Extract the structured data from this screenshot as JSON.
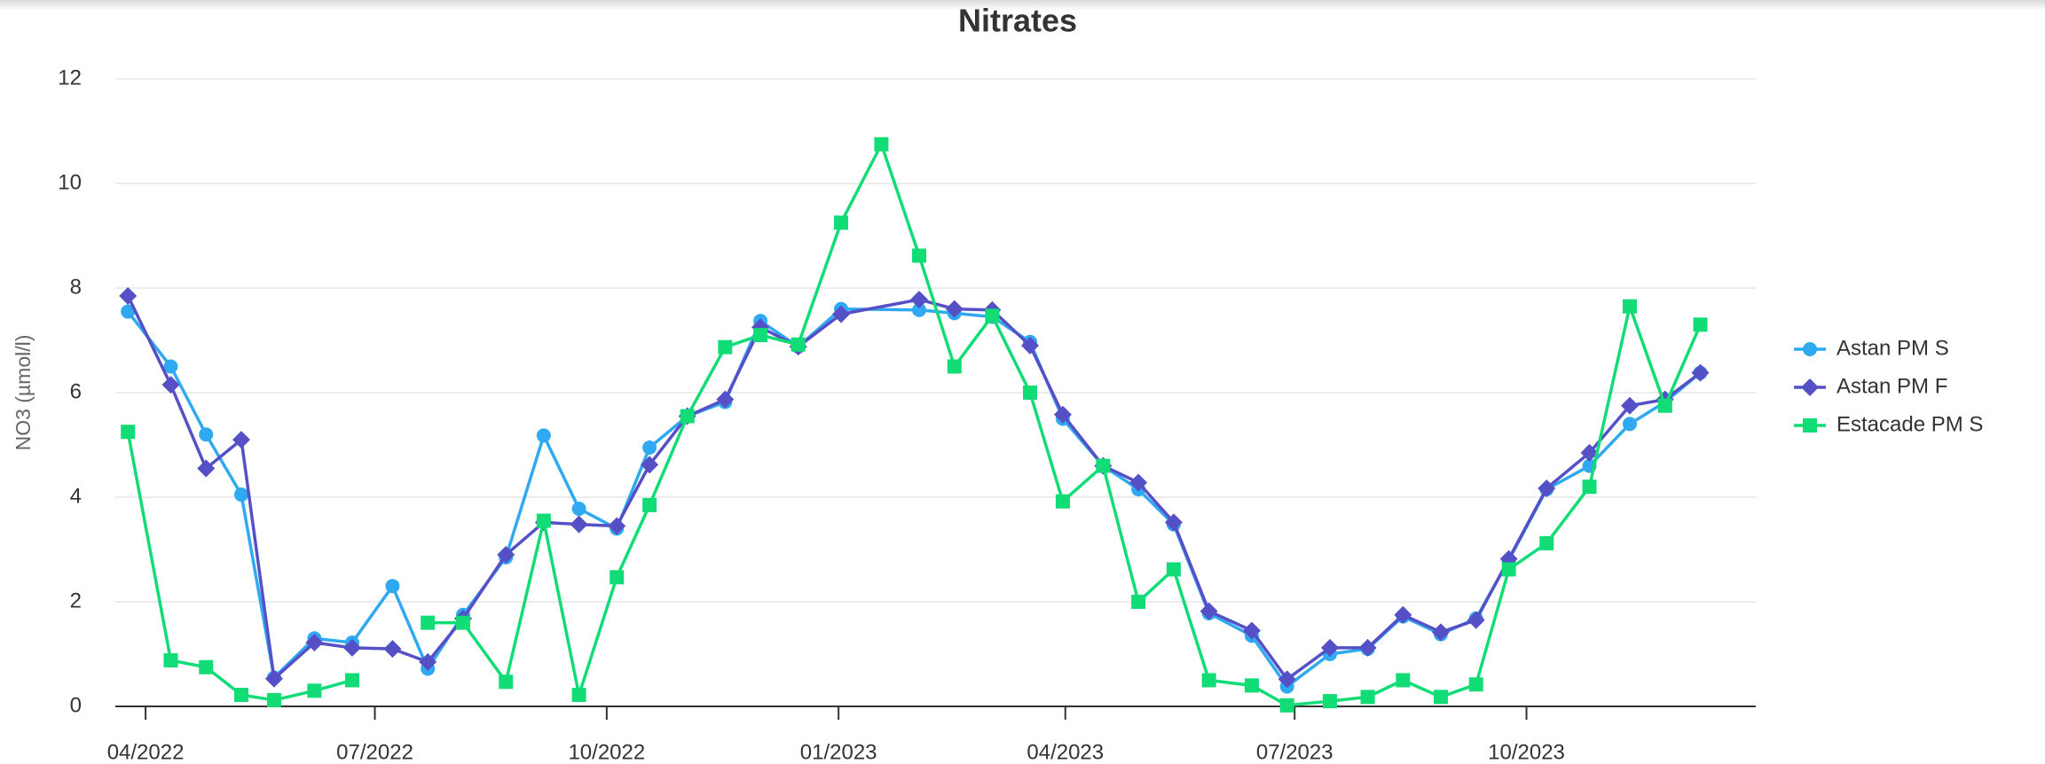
{
  "chart_data": {
    "type": "line",
    "title": "Nitrates",
    "ylabel": "NO3 (µmol/l)",
    "ylim": [
      0,
      12
    ],
    "yticks": [
      0,
      2,
      4,
      6,
      8,
      10,
      12
    ],
    "grid": true,
    "legend": "right",
    "xlim": [
      "2022-03-20",
      "2023-12-31"
    ],
    "xticks": [
      {
        "value": "2022-04-01",
        "label": "04/2022"
      },
      {
        "value": "2022-07-01",
        "label": "07/2022"
      },
      {
        "value": "2022-10-01",
        "label": "10/2022"
      },
      {
        "value": "2023-01-01",
        "label": "01/2023"
      },
      {
        "value": "2023-04-01",
        "label": "04/2023"
      },
      {
        "value": "2023-07-01",
        "label": "07/2023"
      },
      {
        "value": "2023-10-01",
        "label": "10/2023"
      }
    ],
    "series": [
      {
        "name": "Astan PM S",
        "color": "#2fa9f2",
        "marker": "circle",
        "x": [
          "2022-03-25",
          "2022-04-11",
          "2022-04-25",
          "2022-05-09",
          "2022-05-22",
          "2022-06-07",
          "2022-06-22",
          "2022-07-08",
          "2022-07-22",
          "2022-08-05",
          "2022-08-22",
          "2022-09-06",
          "2022-09-20",
          "2022-10-05",
          "2022-10-18",
          "2022-11-02",
          "2022-11-17",
          "2022-12-01",
          "2022-12-16",
          "2023-01-02",
          "2023-02-02",
          "2023-02-16",
          "2023-03-03",
          "2023-03-18",
          "2023-03-31",
          "2023-04-16",
          "2023-04-30",
          "2023-05-14",
          "2023-05-28",
          "2023-06-14",
          "2023-06-28",
          "2023-07-15",
          "2023-07-30",
          "2023-08-13",
          "2023-08-28",
          "2023-09-11",
          "2023-09-24",
          "2023-10-09",
          "2023-10-26",
          "2023-11-11",
          "2023-11-25",
          "2023-12-09"
        ],
        "values": [
          7.55,
          6.5,
          5.2,
          4.05,
          0.55,
          1.3,
          1.22,
          2.3,
          0.72,
          1.75,
          2.85,
          5.18,
          3.78,
          3.4,
          4.95,
          5.55,
          5.82,
          7.37,
          6.88,
          7.6,
          7.58,
          7.52,
          7.45,
          6.97,
          5.5,
          4.6,
          4.15,
          3.48,
          1.78,
          1.35,
          0.38,
          1.0,
          1.1,
          1.72,
          1.38,
          1.68,
          2.8,
          4.15,
          4.6,
          5.4,
          5.82,
          6.38
        ]
      },
      {
        "name": "Astan PM F",
        "color": "#5550c6",
        "marker": "diamond",
        "x": [
          "2022-03-25",
          "2022-04-11",
          "2022-04-25",
          "2022-05-09",
          "2022-05-22",
          "2022-06-07",
          "2022-06-22",
          "2022-07-08",
          "2022-07-22",
          "2022-08-05",
          "2022-08-22",
          "2022-09-06",
          "2022-09-20",
          "2022-10-05",
          "2022-10-18",
          "2022-11-02",
          "2022-11-17",
          "2022-12-01",
          "2022-12-16",
          "2023-01-02",
          "2023-02-02",
          "2023-02-16",
          "2023-03-03",
          "2023-03-18",
          "2023-03-31",
          "2023-04-16",
          "2023-04-30",
          "2023-05-14",
          "2023-05-28",
          "2023-06-14",
          "2023-06-28",
          "2023-07-15",
          "2023-07-30",
          "2023-08-13",
          "2023-08-28",
          "2023-09-11",
          "2023-09-24",
          "2023-10-09",
          "2023-10-26",
          "2023-11-11",
          "2023-11-25",
          "2023-12-09"
        ],
        "values": [
          7.85,
          6.15,
          4.55,
          5.1,
          0.53,
          1.22,
          1.12,
          1.1,
          0.85,
          1.68,
          2.9,
          3.52,
          3.48,
          3.45,
          4.62,
          5.55,
          5.87,
          7.25,
          6.88,
          7.5,
          7.78,
          7.6,
          7.58,
          6.9,
          5.58,
          4.6,
          4.28,
          3.52,
          1.82,
          1.45,
          0.52,
          1.12,
          1.12,
          1.75,
          1.42,
          1.65,
          2.82,
          4.17,
          4.85,
          5.75,
          5.87,
          6.38
        ]
      },
      {
        "name": "Estacade PM S",
        "color": "#12dc76",
        "marker": "square",
        "x": [
          "2022-03-25",
          "2022-04-11",
          "2022-04-25",
          "2022-05-09",
          "2022-05-22",
          "2022-06-07",
          "2022-06-22",
          "2022-07-08",
          "2022-07-22",
          "2022-08-05",
          "2022-08-22",
          "2022-09-06",
          "2022-09-20",
          "2022-10-05",
          "2022-10-18",
          "2022-11-02",
          "2022-11-17",
          "2022-12-01",
          "2022-12-16",
          "2023-01-02",
          "2023-01-18",
          "2023-02-02",
          "2023-02-16",
          "2023-03-03",
          "2023-03-18",
          "2023-03-31",
          "2023-04-16",
          "2023-04-30",
          "2023-05-14",
          "2023-05-28",
          "2023-06-14",
          "2023-06-28",
          "2023-07-15",
          "2023-07-30",
          "2023-08-13",
          "2023-08-28",
          "2023-09-11",
          "2023-09-24",
          "2023-10-09",
          "2023-10-26",
          "2023-11-11",
          "2023-11-25",
          "2023-12-09"
        ],
        "values": [
          5.25,
          0.88,
          0.75,
          0.22,
          0.12,
          0.3,
          0.5,
          null,
          1.6,
          1.6,
          0.47,
          3.55,
          0.22,
          2.47,
          3.85,
          5.55,
          6.87,
          7.1,
          6.92,
          9.25,
          10.75,
          8.62,
          6.5,
          7.47,
          6.0,
          3.92,
          4.6,
          2.0,
          2.62,
          0.5,
          0.4,
          0.02,
          0.1,
          0.18,
          0.5,
          0.18,
          0.42,
          2.62,
          3.12,
          4.2,
          7.65,
          5.75,
          7.3
        ]
      }
    ]
  }
}
